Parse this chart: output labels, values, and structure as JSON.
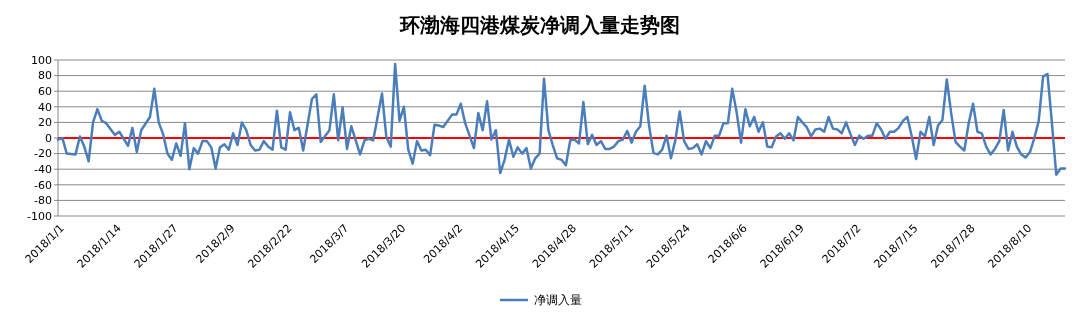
{
  "chart_data": {
    "type": "line",
    "title": "环渤海四港煤炭净调入量走势图",
    "legend": "bottom",
    "grid": "y",
    "line_style": "solid",
    "marker": "none",
    "xlim": [
      "2018-01-01",
      "2018-08-19"
    ],
    "xticks": [
      {
        "value": "2018-01-01",
        "label": "2018/1/1"
      },
      {
        "value": "2018-01-14",
        "label": "2018/1/14"
      },
      {
        "value": "2018-01-27",
        "label": "2018/1/27"
      },
      {
        "value": "2018-02-09",
        "label": "2018/2/9"
      },
      {
        "value": "2018-02-22",
        "label": "2018/2/22"
      },
      {
        "value": "2018-03-07",
        "label": "2018/3/7"
      },
      {
        "value": "2018-03-20",
        "label": "2018/3/20"
      },
      {
        "value": "2018-04-02",
        "label": "2018/4/2"
      },
      {
        "value": "2018-04-15",
        "label": "2018/4/15"
      },
      {
        "value": "2018-04-28",
        "label": "2018/4/28"
      },
      {
        "value": "2018-05-11",
        "label": "2018/5/11"
      },
      {
        "value": "2018-05-24",
        "label": "2018/5/24"
      },
      {
        "value": "2018-06-06",
        "label": "2018/6/6"
      },
      {
        "value": "2018-06-19",
        "label": "2018/6/19"
      },
      {
        "value": "2018-07-02",
        "label": "2018/7/2"
      },
      {
        "value": "2018-07-15",
        "label": "2018/7/15"
      },
      {
        "value": "2018-07-28",
        "label": "2018/7/28"
      },
      {
        "value": "2018-08-10",
        "label": "2018/8/10"
      }
    ],
    "ylim": [
      -100,
      100
    ],
    "yticks": [
      -100,
      -80,
      -60,
      -40,
      -20,
      0,
      20,
      40,
      60,
      80,
      100
    ],
    "ref_lines": [
      {
        "axis": "y",
        "value": 0,
        "color": "#ff0000"
      }
    ],
    "series": [
      {
        "name": "净调入量",
        "color": "#4a7ebb",
        "x": [
          "2018-01-01",
          "2018-01-02",
          "2018-01-03",
          "2018-01-05",
          "2018-01-06",
          "2018-01-07",
          "2018-01-08",
          "2018-01-09",
          "2018-01-10",
          "2018-01-11",
          "2018-01-12",
          "2018-01-14",
          "2018-01-15",
          "2018-01-17",
          "2018-01-18",
          "2018-01-19",
          "2018-01-20",
          "2018-01-22",
          "2018-01-23",
          "2018-01-24",
          "2018-01-25",
          "2018-01-26",
          "2018-01-27",
          "2018-01-28",
          "2018-01-29",
          "2018-01-30",
          "2018-01-31",
          "2018-02-01",
          "2018-02-02",
          "2018-02-03",
          "2018-02-04",
          "2018-02-05",
          "2018-02-06",
          "2018-02-07",
          "2018-02-08",
          "2018-02-09",
          "2018-02-10",
          "2018-02-11",
          "2018-02-12",
          "2018-02-13",
          "2018-02-14",
          "2018-02-15",
          "2018-02-16",
          "2018-02-17",
          "2018-02-18",
          "2018-02-19",
          "2018-02-20",
          "2018-02-21",
          "2018-02-22",
          "2018-02-23",
          "2018-02-24",
          "2018-02-25",
          "2018-02-26",
          "2018-02-28",
          "2018-03-01",
          "2018-03-02",
          "2018-03-04",
          "2018-03-05",
          "2018-03-06",
          "2018-03-07",
          "2018-03-08",
          "2018-03-09",
          "2018-03-11",
          "2018-03-12",
          "2018-03-13",
          "2018-03-14",
          "2018-03-16",
          "2018-03-17",
          "2018-03-18",
          "2018-03-19",
          "2018-03-20",
          "2018-03-21",
          "2018-03-22",
          "2018-03-23",
          "2018-03-24",
          "2018-03-25",
          "2018-03-26",
          "2018-03-27",
          "2018-03-28",
          "2018-03-29",
          "2018-03-30",
          "2018-04-01",
          "2018-04-02",
          "2018-04-03",
          "2018-04-04",
          "2018-04-06",
          "2018-04-07",
          "2018-04-08",
          "2018-04-09",
          "2018-04-10",
          "2018-04-11",
          "2018-04-12",
          "2018-04-13",
          "2018-04-14",
          "2018-04-15",
          "2018-04-16",
          "2018-04-17",
          "2018-04-18",
          "2018-04-19",
          "2018-04-20",
          "2018-04-21",
          "2018-04-22",
          "2018-04-23",
          "2018-04-24",
          "2018-04-25",
          "2018-04-26",
          "2018-04-27",
          "2018-04-28",
          "2018-04-29",
          "2018-04-30",
          "2018-05-01",
          "2018-05-02",
          "2018-05-03",
          "2018-05-04",
          "2018-05-05",
          "2018-05-06",
          "2018-05-07",
          "2018-05-08",
          "2018-05-09",
          "2018-05-10",
          "2018-05-11",
          "2018-05-12",
          "2018-05-13",
          "2018-05-14",
          "2018-05-15",
          "2018-05-16",
          "2018-05-17",
          "2018-05-18",
          "2018-05-19",
          "2018-05-20",
          "2018-05-21",
          "2018-05-22",
          "2018-05-23",
          "2018-05-24",
          "2018-05-25",
          "2018-05-26",
          "2018-05-27",
          "2018-05-28",
          "2018-05-29",
          "2018-05-30",
          "2018-05-31",
          "2018-06-01",
          "2018-06-02",
          "2018-06-03",
          "2018-06-04",
          "2018-06-05",
          "2018-06-06",
          "2018-06-07",
          "2018-06-08",
          "2018-06-09",
          "2018-06-10",
          "2018-06-11",
          "2018-06-12",
          "2018-06-13",
          "2018-06-14",
          "2018-06-15",
          "2018-06-16",
          "2018-06-17",
          "2018-06-18",
          "2018-06-19",
          "2018-06-20",
          "2018-06-21",
          "2018-06-22",
          "2018-06-23",
          "2018-06-24",
          "2018-06-25",
          "2018-06-26",
          "2018-06-27",
          "2018-06-28",
          "2018-06-29",
          "2018-06-30",
          "2018-07-01",
          "2018-07-02",
          "2018-07-03",
          "2018-07-04",
          "2018-07-05",
          "2018-07-06",
          "2018-07-07",
          "2018-07-08",
          "2018-07-09",
          "2018-07-10",
          "2018-07-11",
          "2018-07-12",
          "2018-07-13",
          "2018-07-14",
          "2018-07-15",
          "2018-07-16",
          "2018-07-17",
          "2018-07-18",
          "2018-07-19",
          "2018-07-20",
          "2018-07-21",
          "2018-07-22",
          "2018-07-23",
          "2018-07-24",
          "2018-07-25",
          "2018-07-26",
          "2018-07-27",
          "2018-07-28",
          "2018-07-29",
          "2018-07-30",
          "2018-07-31",
          "2018-08-01",
          "2018-08-02",
          "2018-08-03",
          "2018-08-04",
          "2018-08-05",
          "2018-08-06",
          "2018-08-07",
          "2018-08-08",
          "2018-08-09",
          "2018-08-10",
          "2018-08-11",
          "2018-08-12",
          "2018-08-13",
          "2018-08-14",
          "2018-08-15",
          "2018-08-16",
          "2018-08-17",
          "2018-08-18",
          "2018-08-19"
        ],
        "values": [
          -2,
          0,
          -20,
          -21,
          2,
          -11,
          -30,
          20,
          37,
          22,
          19,
          4,
          8,
          -10,
          13,
          -18,
          10,
          27,
          63,
          20,
          5,
          -20,
          -28,
          -7,
          -23,
          19,
          -40,
          -13,
          -20,
          -4,
          -4,
          -12,
          -39,
          -12,
          -8,
          -15,
          6,
          -9,
          20,
          10,
          -9,
          -16,
          -15,
          -4,
          -11,
          -15,
          35,
          -12,
          -15,
          33,
          10,
          13,
          -16,
          50,
          56,
          -5,
          10,
          56,
          -3,
          39,
          -14,
          15,
          -21,
          -3,
          -1,
          -3,
          57,
          1,
          -11,
          95,
          22,
          40,
          -15,
          -33,
          -4,
          -16,
          -15,
          -22,
          17,
          16,
          14,
          30,
          30,
          44,
          19,
          -13,
          32,
          10,
          47,
          -2,
          10,
          -45,
          -28,
          -2,
          -24,
          -12,
          -20,
          -13,
          -39,
          -26,
          -20,
          76,
          10,
          -9,
          -26,
          -28,
          -35,
          -3,
          -2,
          -7,
          46,
          -8,
          4,
          -9,
          -4,
          -14,
          -14,
          -11,
          -4,
          -2,
          9,
          -6,
          8,
          15,
          67,
          16,
          -19,
          -21,
          -15,
          3,
          -26,
          -3,
          34,
          -4,
          -14,
          -13,
          -8,
          -21,
          -4,
          -13,
          3,
          3,
          19,
          19,
          63,
          33,
          -6,
          37,
          15,
          27,
          8,
          20,
          -11,
          -12,
          2,
          6,
          -1,
          6,
          -3,
          27,
          20,
          14,
          2,
          11,
          12,
          8,
          27,
          12,
          11,
          6,
          20,
          5,
          -9,
          3,
          -1,
          3,
          3,
          19,
          11,
          -1,
          8,
          8,
          13,
          22,
          27,
          2,
          -27,
          8,
          2,
          27,
          -9,
          16,
          23,
          75,
          32,
          -5,
          -11,
          -16,
          19,
          44,
          8,
          6,
          -11,
          -21,
          -14,
          -4,
          36,
          -16,
          8,
          -11,
          -21,
          -25,
          -18,
          0,
          22,
          79,
          82,
          20,
          -47,
          -39,
          -39
        ]
      }
    ]
  }
}
